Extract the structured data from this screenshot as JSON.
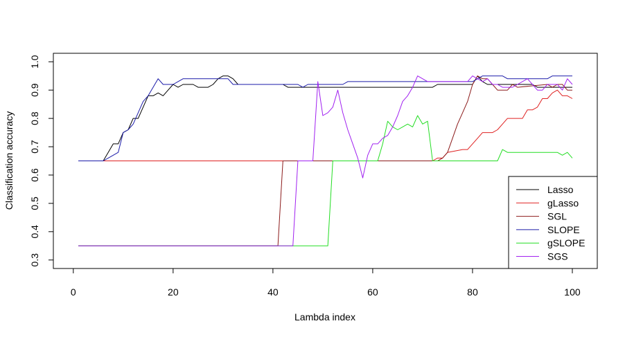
{
  "chart_data": {
    "type": "line",
    "xlabel": "Lambda index",
    "ylabel": "Classification accuracy",
    "xlim": [
      -4,
      105
    ],
    "ylim": [
      0.27,
      1.03
    ],
    "x_ticks": [
      0,
      20,
      40,
      60,
      80,
      100
    ],
    "y_ticks": [
      0.3,
      0.4,
      0.5,
      0.6,
      0.7,
      0.8,
      0.9,
      1.0
    ],
    "x_tick_labels": [
      "0",
      "20",
      "40",
      "60",
      "80",
      "100"
    ],
    "y_tick_labels": [
      "0.3",
      "0.4",
      "0.5",
      "0.6",
      "0.7",
      "0.8",
      "0.9",
      "1.0"
    ],
    "grid": false,
    "legend_position": "bottom-right",
    "series": [
      {
        "name": "Lasso",
        "color": "#000000",
        "points": [
          [
            1,
            0.65
          ],
          [
            6,
            0.65
          ],
          [
            7,
            0.68
          ],
          [
            8,
            0.71
          ],
          [
            9,
            0.71
          ],
          [
            10,
            0.75
          ],
          [
            11,
            0.76
          ],
          [
            12,
            0.8
          ],
          [
            13,
            0.8
          ],
          [
            14,
            0.84
          ],
          [
            15,
            0.88
          ],
          [
            16,
            0.88
          ],
          [
            17,
            0.89
          ],
          [
            18,
            0.88
          ],
          [
            19,
            0.9
          ],
          [
            20,
            0.92
          ],
          [
            21,
            0.91
          ],
          [
            22,
            0.92
          ],
          [
            24,
            0.92
          ],
          [
            25,
            0.91
          ],
          [
            27,
            0.91
          ],
          [
            28,
            0.92
          ],
          [
            29,
            0.94
          ],
          [
            30,
            0.95
          ],
          [
            31,
            0.95
          ],
          [
            32,
            0.94
          ],
          [
            33,
            0.92
          ],
          [
            42,
            0.92
          ],
          [
            43,
            0.91
          ],
          [
            72,
            0.91
          ],
          [
            73,
            0.92
          ],
          [
            80,
            0.92
          ],
          [
            81,
            0.95
          ],
          [
            82,
            0.93
          ],
          [
            83,
            0.92
          ],
          [
            92,
            0.92
          ],
          [
            93,
            0.91
          ],
          [
            100,
            0.91
          ]
        ]
      },
      {
        "name": "gLasso",
        "color": "#df2020",
        "points": [
          [
            1,
            0.65
          ],
          [
            72,
            0.65
          ],
          [
            73,
            0.66
          ],
          [
            74,
            0.66
          ],
          [
            75,
            0.68
          ],
          [
            78,
            0.69
          ],
          [
            79,
            0.69
          ],
          [
            80,
            0.71
          ],
          [
            81,
            0.73
          ],
          [
            82,
            0.75
          ],
          [
            83,
            0.75
          ],
          [
            84,
            0.75
          ],
          [
            85,
            0.76
          ],
          [
            86,
            0.78
          ],
          [
            87,
            0.8
          ],
          [
            90,
            0.8
          ],
          [
            91,
            0.83
          ],
          [
            92,
            0.83
          ],
          [
            93,
            0.84
          ],
          [
            94,
            0.87
          ],
          [
            95,
            0.87
          ],
          [
            96,
            0.89
          ],
          [
            97,
            0.9
          ],
          [
            98,
            0.88
          ],
          [
            99,
            0.88
          ],
          [
            100,
            0.87
          ]
        ]
      },
      {
        "name": "SGL",
        "color": "#8b1a1a",
        "points": [
          [
            1,
            0.35
          ],
          [
            41,
            0.35
          ],
          [
            42,
            0.65
          ],
          [
            72,
            0.65
          ],
          [
            73,
            0.65
          ],
          [
            74,
            0.66
          ],
          [
            75,
            0.68
          ],
          [
            76,
            0.73
          ],
          [
            77,
            0.78
          ],
          [
            78,
            0.82
          ],
          [
            79,
            0.86
          ],
          [
            80,
            0.92
          ],
          [
            81,
            0.95
          ],
          [
            82,
            0.94
          ],
          [
            83,
            0.94
          ],
          [
            84,
            0.92
          ],
          [
            85,
            0.9
          ],
          [
            87,
            0.9
          ],
          [
            88,
            0.92
          ],
          [
            89,
            0.91
          ],
          [
            95,
            0.92
          ],
          [
            96,
            0.91
          ],
          [
            97,
            0.92
          ],
          [
            98,
            0.92
          ],
          [
            99,
            0.9
          ],
          [
            100,
            0.9
          ]
        ]
      },
      {
        "name": "SLOPE",
        "color": "#1a1aa8",
        "points": [
          [
            1,
            0.65
          ],
          [
            6,
            0.65
          ],
          [
            7,
            0.66
          ],
          [
            8,
            0.67
          ],
          [
            9,
            0.68
          ],
          [
            10,
            0.75
          ],
          [
            11,
            0.76
          ],
          [
            12,
            0.78
          ],
          [
            13,
            0.82
          ],
          [
            14,
            0.86
          ],
          [
            15,
            0.88
          ],
          [
            16,
            0.91
          ],
          [
            17,
            0.94
          ],
          [
            18,
            0.92
          ],
          [
            20,
            0.92
          ],
          [
            21,
            0.93
          ],
          [
            22,
            0.94
          ],
          [
            30,
            0.94
          ],
          [
            31,
            0.94
          ],
          [
            32,
            0.92
          ],
          [
            45,
            0.92
          ],
          [
            46,
            0.91
          ],
          [
            47,
            0.92
          ],
          [
            54,
            0.92
          ],
          [
            55,
            0.93
          ],
          [
            80,
            0.93
          ],
          [
            81,
            0.94
          ],
          [
            82,
            0.95
          ],
          [
            86,
            0.95
          ],
          [
            87,
            0.94
          ],
          [
            95,
            0.94
          ],
          [
            96,
            0.95
          ],
          [
            100,
            0.95
          ]
        ]
      },
      {
        "name": "gSLOPE",
        "color": "#22dd22",
        "points": [
          [
            1,
            0.35
          ],
          [
            51,
            0.35
          ],
          [
            52,
            0.65
          ],
          [
            61,
            0.65
          ],
          [
            62,
            0.71
          ],
          [
            63,
            0.79
          ],
          [
            64,
            0.77
          ],
          [
            65,
            0.76
          ],
          [
            66,
            0.77
          ],
          [
            67,
            0.78
          ],
          [
            68,
            0.77
          ],
          [
            69,
            0.81
          ],
          [
            70,
            0.78
          ],
          [
            71,
            0.79
          ],
          [
            72,
            0.65
          ],
          [
            85,
            0.65
          ],
          [
            86,
            0.69
          ],
          [
            87,
            0.68
          ],
          [
            97,
            0.68
          ],
          [
            98,
            0.67
          ],
          [
            99,
            0.68
          ],
          [
            100,
            0.66
          ]
        ]
      },
      {
        "name": "SGS",
        "color": "#a020f0",
        "points": [
          [
            1,
            0.35
          ],
          [
            44,
            0.35
          ],
          [
            45,
            0.65
          ],
          [
            48,
            0.65
          ],
          [
            49,
            0.93
          ],
          [
            50,
            0.81
          ],
          [
            51,
            0.82
          ],
          [
            52,
            0.84
          ],
          [
            53,
            0.9
          ],
          [
            54,
            0.82
          ],
          [
            55,
            0.76
          ],
          [
            56,
            0.71
          ],
          [
            57,
            0.66
          ],
          [
            58,
            0.59
          ],
          [
            59,
            0.67
          ],
          [
            60,
            0.71
          ],
          [
            61,
            0.71
          ],
          [
            62,
            0.73
          ],
          [
            63,
            0.74
          ],
          [
            64,
            0.77
          ],
          [
            65,
            0.81
          ],
          [
            66,
            0.86
          ],
          [
            67,
            0.88
          ],
          [
            68,
            0.91
          ],
          [
            69,
            0.95
          ],
          [
            70,
            0.94
          ],
          [
            71,
            0.93
          ],
          [
            72,
            0.93
          ],
          [
            73,
            0.93
          ],
          [
            79,
            0.93
          ],
          [
            80,
            0.95
          ],
          [
            81,
            0.94
          ],
          [
            82,
            0.93
          ],
          [
            83,
            0.94
          ],
          [
            84,
            0.92
          ],
          [
            85,
            0.92
          ],
          [
            86,
            0.91
          ],
          [
            87,
            0.91
          ],
          [
            88,
            0.91
          ],
          [
            89,
            0.92
          ],
          [
            90,
            0.93
          ],
          [
            91,
            0.94
          ],
          [
            92,
            0.92
          ],
          [
            93,
            0.9
          ],
          [
            94,
            0.9
          ],
          [
            95,
            0.92
          ],
          [
            96,
            0.92
          ],
          [
            97,
            0.92
          ],
          [
            98,
            0.9
          ],
          [
            99,
            0.94
          ],
          [
            100,
            0.92
          ]
        ]
      }
    ]
  }
}
